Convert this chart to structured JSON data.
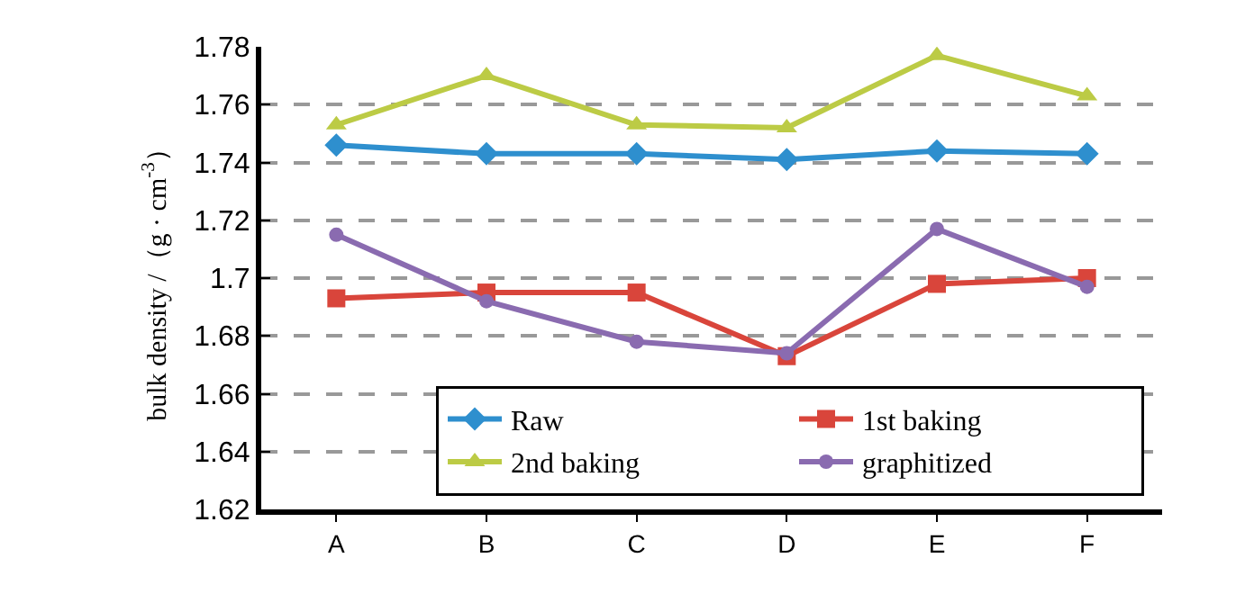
{
  "chart_data": {
    "type": "line",
    "ylabel": "bulk density /（g · cm$^{-3}$）",
    "categories": [
      "A",
      "B",
      "C",
      "D",
      "E",
      "F"
    ],
    "series": [
      {
        "name": "Raw",
        "color": "#2e8fce",
        "marker": "diamond",
        "values": [
          1.746,
          1.743,
          1.743,
          1.741,
          1.744,
          1.743
        ]
      },
      {
        "name": "1st baking",
        "color": "#d9453b",
        "marker": "square",
        "values": [
          1.693,
          1.695,
          1.695,
          1.673,
          1.698,
          1.7
        ]
      },
      {
        "name": "2nd baking",
        "color": "#bccb45",
        "marker": "triangle",
        "values": [
          1.753,
          1.77,
          1.753,
          1.752,
          1.777,
          1.763
        ]
      },
      {
        "name": "graphitized",
        "color": "#8a6bb0",
        "marker": "circle",
        "values": [
          1.715,
          1.692,
          1.678,
          1.674,
          1.717,
          1.697
        ]
      }
    ],
    "ylim": [
      1.62,
      1.78
    ],
    "yticks": [
      1.62,
      1.64,
      1.66,
      1.68,
      1.7,
      1.72,
      1.74,
      1.76,
      1.78
    ],
    "grid": "y",
    "legend": "bottom right",
    "line_style": "solid"
  }
}
